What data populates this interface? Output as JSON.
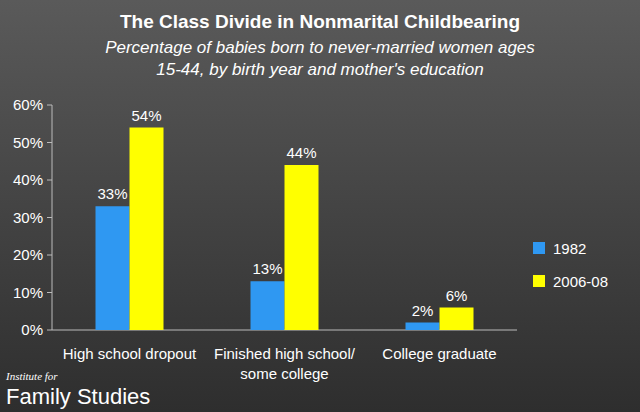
{
  "chart_data": {
    "type": "bar",
    "title": "The Class Divide in Nonmarital Childbearing",
    "subtitle": [
      "Percentage of babies born to never-married women ages",
      "15-44, by birth year and mother's education"
    ],
    "categories": [
      "High school dropout",
      "Finished high school/\nsome college",
      "College graduate"
    ],
    "series": [
      {
        "name": "1982",
        "color": "#2f98f2",
        "values": [
          33,
          13,
          2
        ],
        "value_labels": [
          "33%",
          "13%",
          "2%"
        ]
      },
      {
        "name": "2006-08",
        "color": "#ffff00",
        "values": [
          54,
          44,
          6
        ],
        "value_labels": [
          "54%",
          "44%",
          "6%"
        ]
      }
    ],
    "ylim": [
      0,
      60
    ],
    "yticks": [
      {
        "value": 0,
        "label": "0%"
      },
      {
        "value": 10,
        "label": "10%"
      },
      {
        "value": 20,
        "label": "20%"
      },
      {
        "value": 30,
        "label": "30%"
      },
      {
        "value": 40,
        "label": "40%"
      },
      {
        "value": 50,
        "label": "50%"
      },
      {
        "value": 60,
        "label": "60%"
      }
    ],
    "grid": false,
    "legend": "right",
    "data_labels": true,
    "annotations": [
      "Institute for",
      "Family Studies"
    ]
  }
}
